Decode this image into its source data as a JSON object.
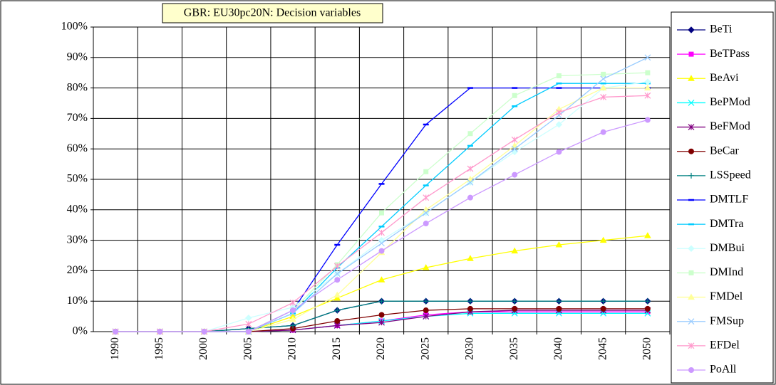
{
  "chart_data": {
    "type": "line",
    "title": "GBR: EU30pc20N: Decision variables",
    "categories": [
      "1990",
      "1995",
      "2000",
      "2005",
      "2010",
      "2015",
      "2020",
      "2025",
      "2030",
      "2035",
      "2040",
      "2045",
      "2050"
    ],
    "ylim": [
      0,
      100
    ],
    "yticks": [
      {
        "value": 0,
        "label": "0%"
      },
      {
        "value": 10,
        "label": "10%"
      },
      {
        "value": 20,
        "label": "20%"
      },
      {
        "value": 30,
        "label": "30%"
      },
      {
        "value": 40,
        "label": "40%"
      },
      {
        "value": 50,
        "label": "50%"
      },
      {
        "value": 60,
        "label": "60%"
      },
      {
        "value": 70,
        "label": "70%"
      },
      {
        "value": 80,
        "label": "80%"
      },
      {
        "value": 90,
        "label": "90%"
      },
      {
        "value": 100,
        "label": "100%"
      }
    ],
    "grid": true,
    "legend": "right",
    "series": [
      {
        "name": "BeTi",
        "color": "#000080",
        "marker": "diamond",
        "values": [
          0,
          0,
          0,
          1,
          2,
          7,
          10,
          10,
          10,
          10,
          10,
          10,
          10
        ]
      },
      {
        "name": "BeTPass",
        "color": "#ff00ff",
        "marker": "square",
        "values": [
          0,
          0,
          0,
          0,
          0.5,
          2,
          3.5,
          5.5,
          6.5,
          6.5,
          6.5,
          6.5,
          6.5
        ]
      },
      {
        "name": "BeAvi",
        "color": "#ffff00",
        "marker": "triangle",
        "values": [
          0,
          0,
          0,
          0,
          5,
          11,
          17,
          21,
          24,
          26.5,
          28.5,
          30,
          31.5
        ]
      },
      {
        "name": "BePMod",
        "color": "#00ffff",
        "marker": "x",
        "values": [
          0,
          0,
          0,
          0,
          0.5,
          2,
          3.5,
          5,
          6,
          6,
          6,
          6,
          6
        ]
      },
      {
        "name": "BeFMod",
        "color": "#800080",
        "marker": "star",
        "values": [
          0,
          0,
          0,
          0,
          0.5,
          2,
          3,
          5,
          6.5,
          7,
          7,
          7,
          7
        ]
      },
      {
        "name": "BeCar",
        "color": "#800000",
        "marker": "circle",
        "values": [
          0,
          0,
          0,
          0,
          1,
          3.5,
          5.5,
          7,
          7.5,
          7.5,
          7.5,
          7.5,
          7.5
        ]
      },
      {
        "name": "LSSpeed",
        "color": "#008080",
        "marker": "plus",
        "values": [
          0,
          0,
          0,
          1,
          2,
          7,
          10,
          10,
          10,
          10,
          10,
          10,
          10
        ]
      },
      {
        "name": "DMTLF",
        "color": "#0000ff",
        "marker": "dash",
        "values": [
          0,
          0,
          0,
          0,
          7,
          28.5,
          48.5,
          68,
          80,
          80,
          80,
          80,
          80
        ]
      },
      {
        "name": "DMTra",
        "color": "#00ccff",
        "marker": "dash",
        "values": [
          0,
          0,
          0,
          0,
          6,
          21,
          34.5,
          48,
          61,
          74,
          81.5,
          81.5,
          81.5
        ]
      },
      {
        "name": "DMBui",
        "color": "#ccffff",
        "marker": "diamond",
        "values": [
          0,
          0,
          0,
          4.5,
          8,
          19,
          30,
          39,
          49,
          59,
          68,
          80,
          82
        ]
      },
      {
        "name": "DMInd",
        "color": "#ccffcc",
        "marker": "square",
        "values": [
          0,
          0,
          0,
          0,
          7,
          22,
          39,
          52.5,
          65,
          77.5,
          84,
          84.5,
          85
        ]
      },
      {
        "name": "FMDel",
        "color": "#ffff99",
        "marker": "triangle",
        "values": [
          0,
          0,
          0,
          0,
          4,
          12,
          26,
          40,
          50,
          61,
          73,
          80,
          80
        ]
      },
      {
        "name": "FMSup",
        "color": "#99ccff",
        "marker": "x",
        "values": [
          0,
          0,
          0,
          0,
          6,
          19,
          29,
          39,
          49,
          60,
          71,
          83,
          90
        ]
      },
      {
        "name": "EFDel",
        "color": "#ff99cc",
        "marker": "star",
        "values": [
          0,
          0,
          0,
          2.5,
          9.5,
          21.5,
          32.5,
          44,
          53.5,
          63,
          72,
          77,
          77.5
        ]
      },
      {
        "name": "PoAll",
        "color": "#cc99ff",
        "marker": "circle",
        "values": [
          0,
          0,
          0,
          0,
          7,
          17,
          26.5,
          35.5,
          44,
          51.5,
          59,
          65.5,
          69.5
        ]
      }
    ]
  }
}
